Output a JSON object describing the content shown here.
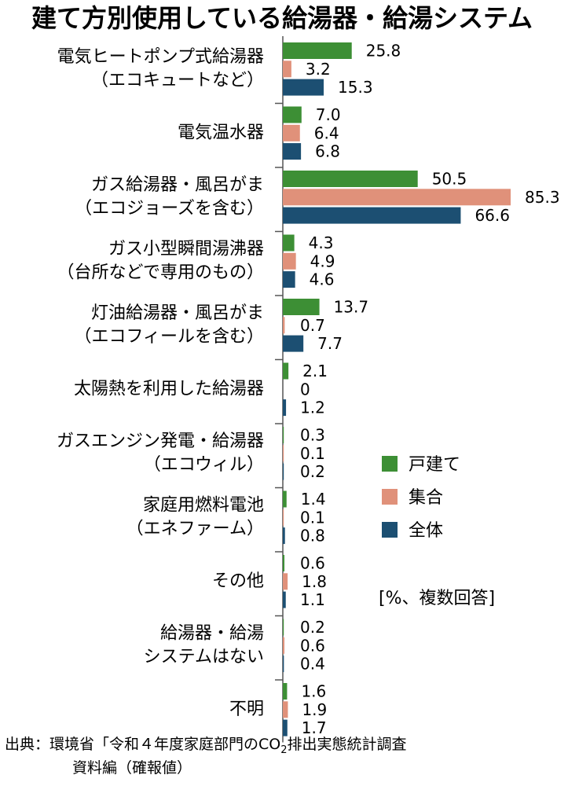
{
  "chart_data": {
    "type": "bar",
    "orientation": "horizontal",
    "title": "建て方別使用している給湯器・給湯システム",
    "unit_note": "[%、複数回答]",
    "categories": [
      [
        "電気ヒートポンプ式給湯器",
        "（エコキュートなど）"
      ],
      [
        "電気温水器"
      ],
      [
        "ガス給湯器・風呂がま",
        "（エコジョーズを含む）"
      ],
      [
        "ガス小型瞬間湯沸器",
        "（台所などで専用のもの）"
      ],
      [
        "灯油給湯器・風呂がま",
        "（エコフィールを含む）"
      ],
      [
        "太陽熱を利用した給湯器"
      ],
      [
        "ガスエンジン発電・給湯器",
        "（エコウィル）"
      ],
      [
        "家庭用燃料電池",
        "（エネファーム）"
      ],
      [
        "その他"
      ],
      [
        "給湯器・給湯",
        "システムはない"
      ],
      [
        "不明"
      ]
    ],
    "series": [
      {
        "name": "戸建て",
        "color": "#3d8f35",
        "values": [
          25.8,
          7.0,
          50.5,
          4.3,
          13.7,
          2.1,
          0.3,
          1.4,
          0.6,
          0.2,
          1.6
        ],
        "labels": [
          "25.8",
          "7.0",
          "50.5",
          "4.3",
          "13.7",
          "2.1",
          "0.3",
          "1.4",
          "0.6",
          "0.2",
          "1.6"
        ]
      },
      {
        "name": "集合",
        "color": "#e0917a",
        "values": [
          3.2,
          6.4,
          85.3,
          4.9,
          0.7,
          0,
          0.1,
          0.1,
          1.8,
          0.6,
          1.9
        ],
        "labels": [
          "3.2",
          "6.4",
          "85.3",
          "4.9",
          "0.7",
          "0",
          "0.1",
          "0.1",
          "1.8",
          "0.6",
          "1.9"
        ]
      },
      {
        "name": "全体",
        "color": "#1c4f72",
        "values": [
          15.3,
          6.8,
          66.6,
          4.6,
          7.7,
          1.2,
          0.2,
          0.8,
          1.1,
          0.4,
          1.7
        ],
        "labels": [
          "15.3",
          "6.8",
          "66.6",
          "4.6",
          "7.7",
          "1.2",
          "0.2",
          "0.8",
          "1.1",
          "0.4",
          "1.7"
        ]
      }
    ],
    "legend_position": "right",
    "source": [
      "出典：環境省「令和４年度家庭部門のCO",
      "2",
      "排出実態統計調査"
    ],
    "source_line2": "資料編（確報値）"
  }
}
